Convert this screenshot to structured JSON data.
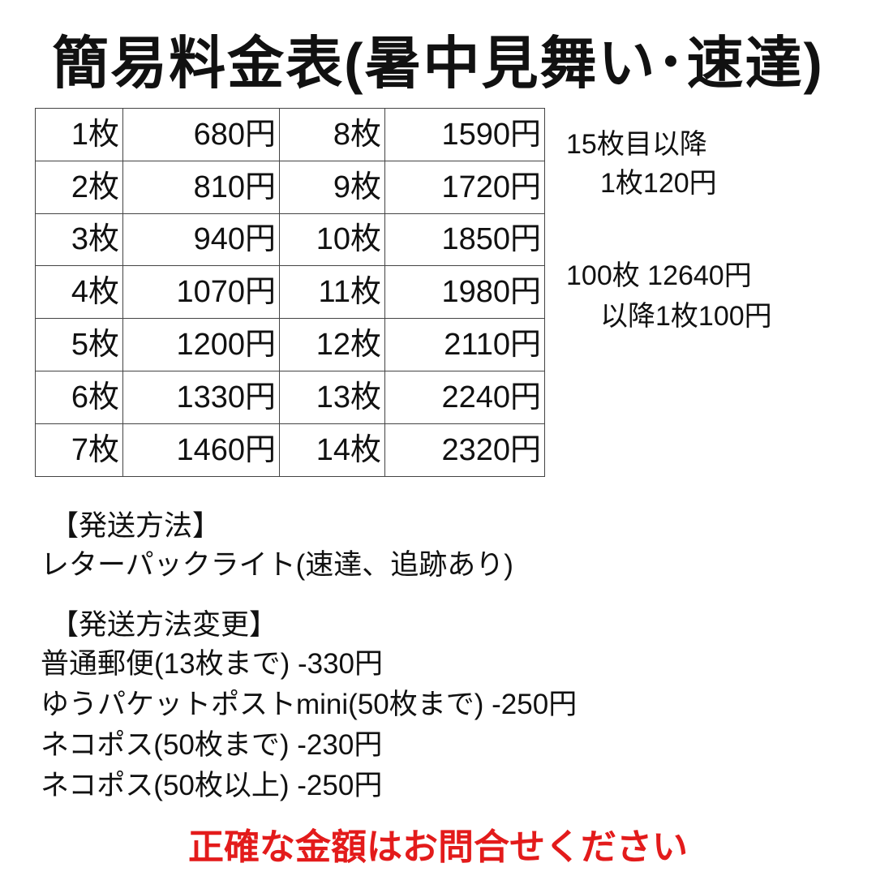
{
  "title": "簡易料金表(暑中見舞い･速達)",
  "price_table": [
    [
      "1枚",
      "680円",
      "8枚",
      "1590円"
    ],
    [
      "2枚",
      "810円",
      "9枚",
      "1720円"
    ],
    [
      "3枚",
      "940円",
      "10枚",
      "1850円"
    ],
    [
      "4枚",
      "1070円",
      "11枚",
      "1980円"
    ],
    [
      "5枚",
      "1200円",
      "12枚",
      "2110円"
    ],
    [
      "6枚",
      "1330円",
      "13枚",
      "2240円"
    ],
    [
      "7枚",
      "1460円",
      "14枚",
      "2320円"
    ]
  ],
  "notes": {
    "after15_line1": "15枚目以降",
    "after15_line2": "1枚120円",
    "after100_line1": "100枚 12640円",
    "after100_line2": "以降1枚100円"
  },
  "shipping": {
    "heading": "【発送方法】",
    "method": "レターパックライト(速達、追跡あり)"
  },
  "change": {
    "heading": "【発送方法変更】",
    "items": [
      "普通郵便(13枚まで) -330円",
      "ゆうパケットポストmini(50枚まで) -250円",
      "ネコポス(50枚まで) -230円",
      "ネコポス(50枚以上) -250円"
    ]
  },
  "footer_notice": "正確な金額はお問合せください",
  "colors": {
    "notice": "#e31b1b",
    "text": "#111111"
  }
}
